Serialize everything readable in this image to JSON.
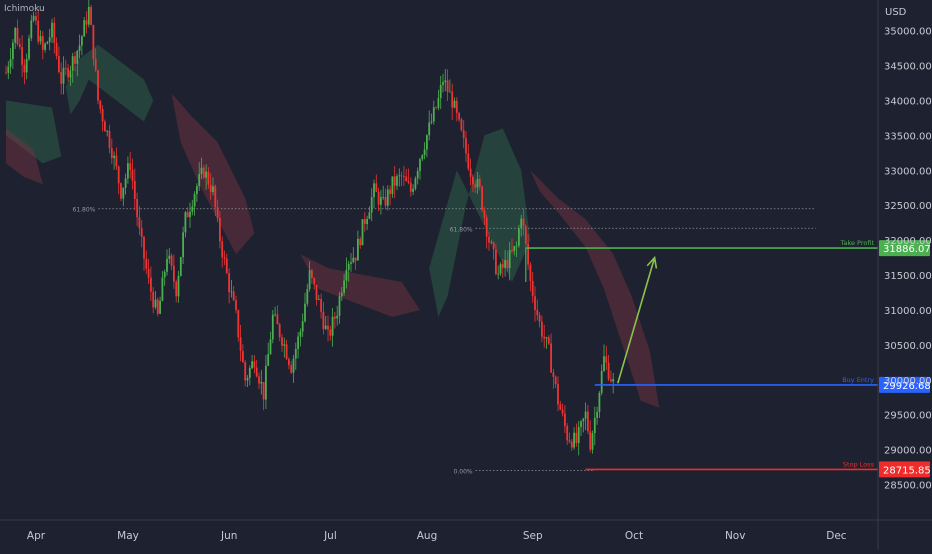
{
  "indicator_label": "Ichimoku",
  "colors": {
    "background": "#1e2230",
    "up": "#4caf50",
    "down": "#ef3434",
    "take_profit": "#4caf50",
    "buy_entry": "#2962ff",
    "stop_loss": "#ef2b2b",
    "axis_text": "#c8cad3",
    "cloud_green": "#2e6b4e",
    "cloud_red": "#7a3440"
  },
  "chart_data": {
    "type": "candlestick",
    "title": "",
    "currency": "USD",
    "x_axis": {
      "months": [
        "Apr",
        "May",
        "Jun",
        "Jul",
        "Aug",
        "Sep",
        "Oct",
        "Nov",
        "Dec"
      ],
      "month_day_index": [
        0,
        20,
        42,
        64,
        85,
        108,
        130,
        152,
        174
      ]
    },
    "y_axis": {
      "ticks": [
        28500,
        29000,
        29500,
        30000,
        30500,
        31000,
        31500,
        32000,
        32500,
        33000,
        33500,
        34000,
        34500,
        35000
      ],
      "tick_labels": [
        "28500.00",
        "29000.00",
        "29500.00",
        "30000.00",
        "30500.00",
        "31000.00",
        "31500.00",
        "32000.00",
        "32500.00",
        "33000.00",
        "33500.00",
        "34000.00",
        "34500.00",
        "35000.00"
      ],
      "range": [
        28020,
        35440
      ]
    },
    "candles": {
      "anchors": [
        [
          0,
          34400
        ],
        [
          2,
          35000
        ],
        [
          4,
          34500
        ],
        [
          6,
          35200
        ],
        [
          8,
          34700
        ],
        [
          10,
          35000
        ],
        [
          12,
          34300
        ],
        [
          14,
          34500
        ],
        [
          16,
          34800
        ],
        [
          18,
          35300
        ],
        [
          19,
          34700
        ],
        [
          20,
          34000
        ],
        [
          23,
          33300
        ],
        [
          25,
          32700
        ],
        [
          27,
          33100
        ],
        [
          29,
          32100
        ],
        [
          31,
          31400
        ],
        [
          33,
          30900
        ],
        [
          35,
          31800
        ],
        [
          37,
          31300
        ],
        [
          39,
          32300
        ],
        [
          41,
          32700
        ],
        [
          43,
          33000
        ],
        [
          45,
          32700
        ],
        [
          46,
          32200
        ],
        [
          48,
          31500
        ],
        [
          50,
          30900
        ],
        [
          52,
          30000
        ],
        [
          54,
          30300
        ],
        [
          56,
          29800
        ],
        [
          58,
          30900
        ],
        [
          60,
          30600
        ],
        [
          62,
          30200
        ],
        [
          64,
          30700
        ],
        [
          66,
          31500
        ],
        [
          68,
          31100
        ],
        [
          70,
          30600
        ],
        [
          72,
          31000
        ],
        [
          74,
          31700
        ],
        [
          76,
          31800
        ],
        [
          78,
          32300
        ],
        [
          80,
          32700
        ],
        [
          82,
          32500
        ],
        [
          84,
          32800
        ],
        [
          86,
          32900
        ],
        [
          88,
          32700
        ],
        [
          90,
          33200
        ],
        [
          92,
          33600
        ],
        [
          94,
          34000
        ],
        [
          95,
          34300
        ],
        [
          97,
          34000
        ],
        [
          99,
          33500
        ],
        [
          101,
          33000
        ],
        [
          103,
          32700
        ],
        [
          105,
          32000
        ],
        [
          107,
          31500
        ],
        [
          109,
          31700
        ],
        [
          111,
          31900
        ],
        [
          112,
          32400
        ],
        [
          114,
          31400
        ],
        [
          116,
          30800
        ],
        [
          118,
          30400
        ],
        [
          120,
          29700
        ],
        [
          122,
          29200
        ],
        [
          124,
          29100
        ],
        [
          126,
          29500
        ],
        [
          127,
          29100
        ],
        [
          128,
          29450
        ],
        [
          130,
          30300
        ],
        [
          132,
          29950
        ]
      ],
      "seed": 7,
      "bar_day_gap": 1
    },
    "cloud": {
      "green": [
        {
          "points": [
            [
              20,
              34800
            ],
            [
              24,
              34600
            ],
            [
              30,
              34300
            ],
            [
              32,
              34000
            ],
            [
              30,
              33700
            ],
            [
              26,
              33900
            ],
            [
              22,
              34100
            ],
            [
              18,
              34300
            ],
            [
              16,
              34000
            ],
            [
              14,
              33800
            ],
            [
              13,
              34200
            ],
            [
              16,
              34600
            ]
          ]
        },
        {
          "points": [
            [
              98,
              33000
            ],
            [
              104,
              32200
            ],
            [
              110,
              31400
            ],
            [
              114,
              32000
            ],
            [
              112,
              33000
            ],
            [
              108,
              33600
            ],
            [
              104,
              33500
            ],
            [
              100,
              32500
            ],
            [
              96,
              31200
            ],
            [
              94,
              30900
            ],
            [
              92,
              31600
            ]
          ]
        },
        {
          "points": [
            [
              0,
              34000
            ],
            [
              10,
              33900
            ],
            [
              12,
              33200
            ],
            [
              8,
              33100
            ],
            [
              4,
              33300
            ],
            [
              0,
              33500
            ]
          ]
        }
      ],
      "red": [
        {
          "points": [
            [
              36,
              34100
            ],
            [
              40,
              33800
            ],
            [
              46,
              33400
            ],
            [
              52,
              32600
            ],
            [
              54,
              32100
            ],
            [
              50,
              31800
            ],
            [
              46,
              32300
            ],
            [
              42,
              32800
            ],
            [
              38,
              33400
            ]
          ]
        },
        {
          "points": [
            [
              64,
              31800
            ],
            [
              70,
              31600
            ],
            [
              78,
              31500
            ],
            [
              86,
              31400
            ],
            [
              90,
              31000
            ],
            [
              84,
              30900
            ],
            [
              76,
              31100
            ],
            [
              68,
              31300
            ]
          ]
        },
        {
          "points": [
            [
              114,
              33000
            ],
            [
              120,
              32600
            ],
            [
              126,
              32300
            ],
            [
              132,
              31800
            ],
            [
              136,
              31200
            ],
            [
              140,
              30400
            ],
            [
              142,
              29600
            ],
            [
              138,
              29700
            ],
            [
              134,
              30500
            ],
            [
              130,
              31300
            ],
            [
              126,
              31900
            ],
            [
              120,
              32400
            ],
            [
              116,
              32700
            ]
          ]
        },
        {
          "points": [
            [
              0,
              33600
            ],
            [
              6,
              33300
            ],
            [
              8,
              32800
            ],
            [
              4,
              32900
            ],
            [
              0,
              33100
            ]
          ]
        }
      ]
    },
    "fib_levels": [
      {
        "label": "61.80%",
        "value": 32450,
        "from_day": 14,
        "to_day": 176
      },
      {
        "label": "61.80%",
        "value": 32170,
        "from_day": 96,
        "to_day": 176
      },
      {
        "label": "0.00%",
        "value": 28700,
        "from_day": 96,
        "to_day": 128
      }
    ],
    "trade_levels": [
      {
        "name": "Take Profit",
        "value": 31886.07,
        "label": "31886.07",
        "from_day": 113,
        "color_key": "take_profit"
      },
      {
        "name": "Buy Entry",
        "value": 29926.68,
        "label": "29926.68",
        "from_day": 128,
        "color_key": "buy_entry"
      },
      {
        "name": "Stop Loss",
        "value": 28715.85,
        "label": "28715.85",
        "from_day": 126,
        "color_key": "stop_loss"
      }
    ],
    "arrow": {
      "from": [
        133,
        29950
      ],
      "to": [
        141,
        31750
      ]
    },
    "vertical_connector": {
      "day": 113,
      "from": 31886.07,
      "to": 31400
    }
  }
}
